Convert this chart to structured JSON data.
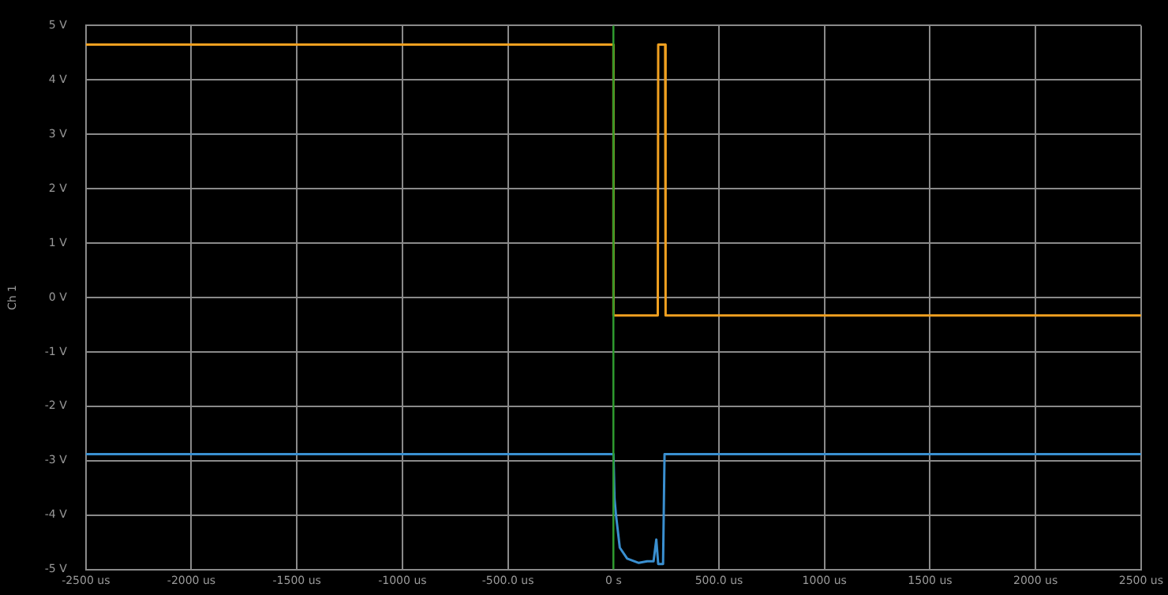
{
  "chart_data": {
    "type": "line",
    "ylabel": "Ch 1",
    "xlim": [
      -2500,
      2500
    ],
    "xticks": [
      {
        "value": -2500,
        "label": "-2500 us"
      },
      {
        "value": -2000,
        "label": "-2000 us"
      },
      {
        "value": -1500,
        "label": "-1500 us"
      },
      {
        "value": -1000,
        "label": "-1000 us"
      },
      {
        "value": -500,
        "label": "-500.0 us"
      },
      {
        "value": 0,
        "label": "0 s"
      },
      {
        "value": 500,
        "label": "500.0 us"
      },
      {
        "value": 1000,
        "label": "1000 us"
      },
      {
        "value": 1500,
        "label": "1500 us"
      },
      {
        "value": 2000,
        "label": "2000 us"
      },
      {
        "value": 2500,
        "label": "2500 us"
      }
    ],
    "ylim": [
      -5,
      5
    ],
    "yticks": [
      {
        "value": 5,
        "label": "5 V"
      },
      {
        "value": 4,
        "label": "4 V"
      },
      {
        "value": 3,
        "label": "3 V"
      },
      {
        "value": 2,
        "label": "2 V"
      },
      {
        "value": 1,
        "label": "1 V"
      },
      {
        "value": 0,
        "label": "0 V"
      },
      {
        "value": -1,
        "label": "-1 V"
      },
      {
        "value": -2,
        "label": "-2 V"
      },
      {
        "value": -3,
        "label": "-3 V"
      },
      {
        "value": -4,
        "label": "-4 V"
      },
      {
        "value": -5,
        "label": "-5 V"
      }
    ],
    "grid": true,
    "legend": false,
    "marker": "none",
    "line_style": "solid",
    "ref_lines": [
      {
        "axis": "x",
        "value": 0,
        "color": "#2a9a2a"
      }
    ],
    "series": [
      {
        "color": "#f0a020",
        "x": [
          -2500,
          0,
          0,
          210,
          212,
          245,
          247,
          2500
        ],
        "values": [
          4.65,
          4.65,
          -0.33,
          -0.33,
          4.65,
          4.65,
          -0.33,
          -0.33
        ]
      },
      {
        "color": "#3a8fd0",
        "x": [
          -2500,
          0,
          5,
          12,
          30,
          65,
          120,
          160,
          190,
          203,
          212,
          235,
          240,
          242,
          2500
        ],
        "values": [
          -2.88,
          -2.88,
          -3.7,
          -4.0,
          -4.6,
          -4.8,
          -4.88,
          -4.85,
          -4.85,
          -4.45,
          -4.9,
          -4.9,
          -4.9,
          -2.88,
          -2.88
        ]
      }
    ]
  }
}
